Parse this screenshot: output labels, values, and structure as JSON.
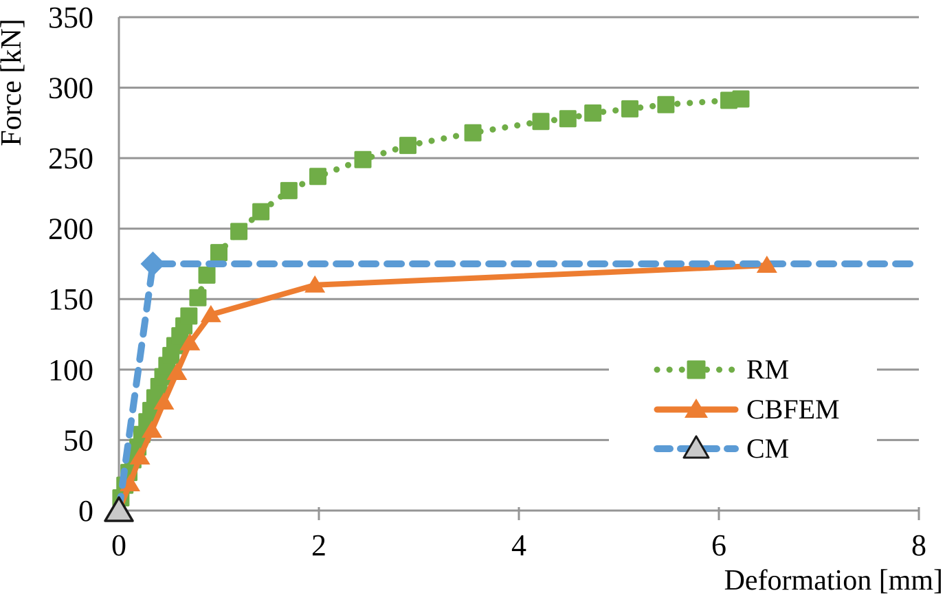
{
  "chart_data": {
    "type": "line",
    "title": "",
    "xlabel": "Deformation [mm]",
    "ylabel": "Force [kN]",
    "xlim": [
      0,
      8
    ],
    "ylim": [
      0,
      350
    ],
    "xticks": [
      0,
      2,
      4,
      6,
      8
    ],
    "yticks": [
      0,
      50,
      100,
      150,
      200,
      250,
      300,
      350
    ],
    "grid": "horizontal-major",
    "legend_position": "inside-right",
    "series": [
      {
        "name": "RM",
        "color": "#70AD47",
        "line_style": "dotted",
        "marker": "square",
        "points": [
          [
            0.02,
            9
          ],
          [
            0.06,
            18
          ],
          [
            0.1,
            27
          ],
          [
            0.14,
            36
          ],
          [
            0.19,
            45
          ],
          [
            0.23,
            54
          ],
          [
            0.28,
            63
          ],
          [
            0.32,
            71
          ],
          [
            0.36,
            80
          ],
          [
            0.4,
            88
          ],
          [
            0.44,
            95
          ],
          [
            0.48,
            103
          ],
          [
            0.52,
            110
          ],
          [
            0.56,
            117
          ],
          [
            0.61,
            124
          ],
          [
            0.65,
            131
          ],
          [
            0.7,
            138
          ],
          [
            0.79,
            151
          ],
          [
            0.88,
            167
          ],
          [
            1.0,
            183
          ],
          [
            1.2,
            198
          ],
          [
            1.42,
            212
          ],
          [
            1.7,
            227
          ],
          [
            1.99,
            237
          ],
          [
            2.44,
            249
          ],
          [
            2.89,
            259
          ],
          [
            3.54,
            268
          ],
          [
            4.22,
            276
          ],
          [
            4.49,
            278
          ],
          [
            4.74,
            282
          ],
          [
            5.11,
            285
          ],
          [
            5.47,
            288
          ],
          [
            6.1,
            291
          ],
          [
            6.22,
            292
          ]
        ]
      },
      {
        "name": "CBFEM",
        "color": "#ED7D31",
        "line_style": "solid",
        "marker": "triangle",
        "marker_skip_first": true,
        "points": [
          [
            0.01,
            2
          ],
          [
            0.11,
            19
          ],
          [
            0.21,
            38
          ],
          [
            0.33,
            57
          ],
          [
            0.45,
            77
          ],
          [
            0.58,
            98
          ],
          [
            0.71,
            119
          ],
          [
            0.92,
            139
          ],
          [
            1.96,
            160
          ],
          [
            6.48,
            174
          ]
        ]
      },
      {
        "name": "CM",
        "color": "#5B9BD5",
        "line_style": "dashed",
        "marker": "none",
        "points": [
          [
            0,
            0
          ],
          [
            0.34,
            175
          ],
          [
            8.0,
            175
          ]
        ],
        "special_markers": [
          {
            "shape": "triangle",
            "x": 0,
            "y": 0,
            "fill": "#C9C9C9",
            "stroke": "#1A1A1A"
          },
          {
            "shape": "diamond",
            "x": 0.34,
            "y": 175,
            "fill": "#5B9BD5"
          }
        ]
      }
    ]
  },
  "legend": {
    "items": [
      {
        "label": "RM"
      },
      {
        "label": "CBFEM"
      },
      {
        "label": "CM"
      }
    ]
  },
  "style": {
    "grid_color": "#959595",
    "axis_color": "#959595",
    "text_color": "#000000",
    "background": "#FFFFFF",
    "legend_background": "#FFFFFF"
  }
}
